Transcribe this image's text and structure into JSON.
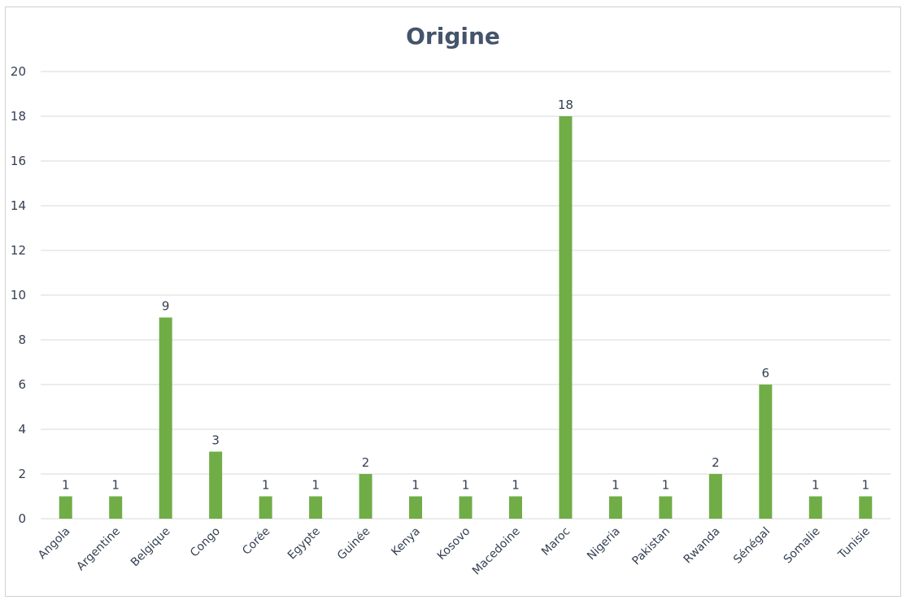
{
  "chart_data": {
    "type": "bar",
    "title": "Origine",
    "xlabel": "",
    "ylabel": "",
    "ylim": [
      0,
      20
    ],
    "yticks": [
      0,
      2,
      4,
      6,
      8,
      10,
      12,
      14,
      16,
      18,
      20
    ],
    "grid": true,
    "legend": "none",
    "bar_color": "#70ad47",
    "gridline_color": "#d9d9d9",
    "categories": [
      "Angola",
      "Argentine",
      "Belgique",
      "Congo",
      "Corée",
      "Egypte",
      "Guinée",
      "Kenya",
      "Kosovo",
      "Macedoine",
      "Maroc",
      "Nigeria",
      "Pakistan",
      "Rwanda",
      "Sénégal",
      "Somalie",
      "Tunisie"
    ],
    "values": [
      1,
      1,
      9,
      3,
      1,
      1,
      2,
      1,
      1,
      1,
      18,
      1,
      1,
      2,
      6,
      1,
      1
    ]
  }
}
